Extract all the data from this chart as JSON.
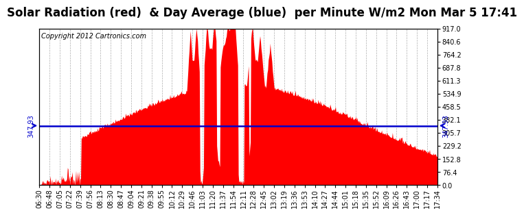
{
  "title": "Solar Radiation (red)  & Day Average (blue)  per Minute W/m2 Mon Mar 5 17:41",
  "copyright": "Copyright 2012 Cartronics.com",
  "y_max": 917.0,
  "y_min": 0.0,
  "day_average": 347.93,
  "ytick_labels": [
    "0.0",
    "76.4",
    "152.8",
    "229.2",
    "305.7",
    "382.1",
    "458.5",
    "534.9",
    "611.3",
    "687.8",
    "764.2",
    "840.6",
    "917.0"
  ],
  "ytick_values": [
    0.0,
    76.4,
    152.8,
    229.2,
    305.7,
    382.1,
    458.5,
    534.9,
    611.3,
    687.8,
    764.2,
    840.6,
    917.0
  ],
  "bg_color": "#ffffff",
  "fill_color": "#ff0000",
  "line_color": "#0000cc",
  "grid_color": "#999999",
  "xtick_labels": [
    "06:30",
    "06:48",
    "07:05",
    "07:22",
    "07:39",
    "07:56",
    "08:13",
    "08:30",
    "08:47",
    "09:04",
    "09:21",
    "09:38",
    "09:55",
    "10:12",
    "10:29",
    "10:46",
    "11:03",
    "11:20",
    "11:37",
    "11:54",
    "12:11",
    "12:28",
    "12:45",
    "13:02",
    "13:19",
    "13:36",
    "13:53",
    "14:10",
    "14:27",
    "14:44",
    "15:01",
    "15:18",
    "15:35",
    "15:52",
    "16:09",
    "16:26",
    "16:43",
    "17:00",
    "17:17",
    "17:34"
  ],
  "title_fontsize": 12,
  "copyright_fontsize": 7,
  "tick_fontsize": 7,
  "label_color": "#000000",
  "avg_label_fontsize": 7
}
